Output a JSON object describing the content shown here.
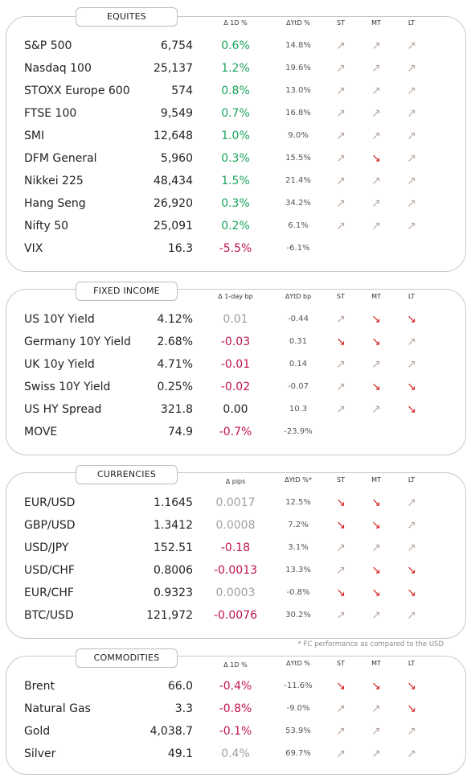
{
  "sections": [
    {
      "id": "equities",
      "title": "EQUITES",
      "headers": {
        "d1": "Δ 1D %",
        "ytd": "ΔYtD %",
        "st": "ST",
        "mt": "MT",
        "lt": "LT"
      },
      "rows": [
        {
          "name": "S&P 500",
          "value": "6,754",
          "d1": "0.6%",
          "d1_tone": "pos",
          "ytd": "14.8%",
          "st": "↗",
          "st_dir": "up",
          "mt": "↗",
          "mt_dir": "up",
          "lt": "↗",
          "lt_dir": "up"
        },
        {
          "name": "Nasdaq 100",
          "value": "25,137",
          "d1": "1.2%",
          "d1_tone": "pos",
          "ytd": "19.6%",
          "st": "↗",
          "st_dir": "up",
          "mt": "↗",
          "mt_dir": "up",
          "lt": "↗",
          "lt_dir": "up"
        },
        {
          "name": "STOXX Europe 600",
          "value": "574",
          "d1": "0.8%",
          "d1_tone": "pos",
          "ytd": "13.0%",
          "st": "↗",
          "st_dir": "up",
          "mt": "↗",
          "mt_dir": "up",
          "lt": "↗",
          "lt_dir": "up"
        },
        {
          "name": "FTSE 100",
          "value": "9,549",
          "d1": "0.7%",
          "d1_tone": "pos",
          "ytd": "16.8%",
          "st": "↗",
          "st_dir": "up",
          "mt": "↗",
          "mt_dir": "up",
          "lt": "↗",
          "lt_dir": "up"
        },
        {
          "name": "SMI",
          "value": "12,648",
          "d1": "1.0%",
          "d1_tone": "pos",
          "ytd": "9.0%",
          "st": "↗",
          "st_dir": "up",
          "mt": "↗",
          "mt_dir": "up",
          "lt": "↗",
          "lt_dir": "up"
        },
        {
          "name": "DFM General",
          "value": "5,960",
          "d1": "0.3%",
          "d1_tone": "pos",
          "ytd": "15.5%",
          "st": "↗",
          "st_dir": "up",
          "mt": "↘",
          "mt_dir": "down",
          "lt": "↗",
          "lt_dir": "up"
        },
        {
          "name": "Nikkei 225",
          "value": "48,434",
          "d1": "1.5%",
          "d1_tone": "pos",
          "ytd": "21.4%",
          "st": "↗",
          "st_dir": "up",
          "mt": "↗",
          "mt_dir": "up",
          "lt": "↗",
          "lt_dir": "up"
        },
        {
          "name": "Hang Seng",
          "value": "26,920",
          "d1": "0.3%",
          "d1_tone": "pos",
          "ytd": "34.2%",
          "st": "↗",
          "st_dir": "up",
          "mt": "↗",
          "mt_dir": "up",
          "lt": "↗",
          "lt_dir": "up"
        },
        {
          "name": "Nifty  50",
          "value": "25,091",
          "d1": "0.2%",
          "d1_tone": "pos",
          "ytd": "6.1%",
          "st": "↗",
          "st_dir": "up",
          "mt": "↗",
          "mt_dir": "up",
          "lt": "↗",
          "lt_dir": "up"
        },
        {
          "name": "VIX",
          "value": "16.3",
          "d1": "-5.5%",
          "d1_tone": "neg",
          "ytd": "-6.1%",
          "st": "",
          "st_dir": "",
          "mt": "",
          "mt_dir": "",
          "lt": "",
          "lt_dir": ""
        }
      ]
    },
    {
      "id": "fixed_income",
      "title": "FIXED INCOME",
      "headers": {
        "d1": "Δ 1-day bp",
        "ytd": "ΔYtD bp",
        "st": "ST",
        "mt": "MT",
        "lt": "LT"
      },
      "rows": [
        {
          "name": "US 10Y Yield",
          "value": "4.12%",
          "d1": "0.01",
          "d1_tone": "grey",
          "ytd": "-0.44",
          "st": "↗",
          "st_dir": "up",
          "mt": "↘",
          "mt_dir": "down",
          "lt": "↘",
          "lt_dir": "down"
        },
        {
          "name": "Germany 10Y Yield",
          "value": "2.68%",
          "d1": "-0.03",
          "d1_tone": "neg",
          "ytd": "0.31",
          "st": "↘",
          "st_dir": "down",
          "mt": "↘",
          "mt_dir": "down",
          "lt": "↗",
          "lt_dir": "up"
        },
        {
          "name": "UK 10y Yield",
          "value": "4.71%",
          "d1": "-0.01",
          "d1_tone": "neg",
          "ytd": "0.14",
          "st": "↗",
          "st_dir": "up",
          "mt": "↗",
          "mt_dir": "up",
          "lt": "↗",
          "lt_dir": "up"
        },
        {
          "name": "Swiss 10Y Yield",
          "value": "0.25%",
          "d1": "-0.02",
          "d1_tone": "neg",
          "ytd": "-0.07",
          "st": "↗",
          "st_dir": "up",
          "mt": "↘",
          "mt_dir": "down",
          "lt": "↘",
          "lt_dir": "down"
        },
        {
          "name": "US HY Spread",
          "value": "321.8",
          "d1": "0.00",
          "d1_tone": "neu",
          "ytd": "10.3",
          "st": "↗",
          "st_dir": "up",
          "mt": "↗",
          "mt_dir": "up",
          "lt": "↘",
          "lt_dir": "down"
        },
        {
          "name": "MOVE",
          "value": "74.9",
          "d1": "-0.7%",
          "d1_tone": "neg",
          "ytd": "-23.9%",
          "st": "",
          "st_dir": "",
          "mt": "",
          "mt_dir": "",
          "lt": "",
          "lt_dir": ""
        }
      ]
    },
    {
      "id": "currencies",
      "title": "CURRENCIES",
      "headers": {
        "d1": "Δ pips",
        "ytd": "ΔYtD %*",
        "st": "ST",
        "mt": "MT",
        "lt": "LT"
      },
      "rows": [
        {
          "name": "EUR/USD",
          "value": "1.1645",
          "d1": "0.0017",
          "d1_tone": "grey",
          "ytd": "12.5%",
          "st": "↘",
          "st_dir": "down",
          "mt": "↘",
          "mt_dir": "down",
          "lt": "↗",
          "lt_dir": "up"
        },
        {
          "name": "GBP/USD",
          "value": "1.3412",
          "d1": "0.0008",
          "d1_tone": "grey",
          "ytd": "7.2%",
          "st": "↘",
          "st_dir": "down",
          "mt": "↘",
          "mt_dir": "down",
          "lt": "↗",
          "lt_dir": "up"
        },
        {
          "name": "USD/JPY",
          "value": "152.51",
          "d1": "-0.18",
          "d1_tone": "neg",
          "ytd": "3.1%",
          "st": "↗",
          "st_dir": "up",
          "mt": "↗",
          "mt_dir": "up",
          "lt": "↗",
          "lt_dir": "up"
        },
        {
          "name": "USD/CHF",
          "value": "0.8006",
          "d1": "-0.0013",
          "d1_tone": "neg",
          "ytd": "13.3%",
          "st": "↗",
          "st_dir": "up",
          "mt": "↘",
          "mt_dir": "down",
          "lt": "↘",
          "lt_dir": "down"
        },
        {
          "name": "EUR/CHF",
          "value": "0.9323",
          "d1": "0.0003",
          "d1_tone": "grey",
          "ytd": "-0.8%",
          "st": "↘",
          "st_dir": "down",
          "mt": "↘",
          "mt_dir": "down",
          "lt": "↘",
          "lt_dir": "down"
        },
        {
          "name": "BTC/USD",
          "value": "121,972",
          "d1": "-0.0076",
          "d1_tone": "neg",
          "ytd": "30.2%",
          "st": "↗",
          "st_dir": "up",
          "mt": "↗",
          "mt_dir": "up",
          "lt": "↗",
          "lt_dir": "up"
        }
      ]
    },
    {
      "id": "commodities",
      "title": "COMMODITIES",
      "headers": {
        "d1": "Δ 1D %",
        "ytd": "ΔYtD %",
        "st": "ST",
        "mt": "MT",
        "lt": "LT"
      },
      "rows": [
        {
          "name": "Brent",
          "value": "66.0",
          "d1": "-0.4%",
          "d1_tone": "neg",
          "ytd": "-11.6%",
          "st": "↘",
          "st_dir": "down",
          "mt": "↘",
          "mt_dir": "down",
          "lt": "↘",
          "lt_dir": "down"
        },
        {
          "name": "Natural Gas",
          "value": "3.3",
          "d1": "-0.8%",
          "d1_tone": "neg",
          "ytd": "-9.0%",
          "st": "↗",
          "st_dir": "up",
          "mt": "↗",
          "mt_dir": "up",
          "lt": "↘",
          "lt_dir": "down"
        },
        {
          "name": "Gold",
          "value": "4,038.7",
          "d1": "-0.1%",
          "d1_tone": "neg",
          "ytd": "53.9%",
          "st": "↗",
          "st_dir": "up",
          "mt": "↗",
          "mt_dir": "up",
          "lt": "↗",
          "lt_dir": "up"
        },
        {
          "name": "Silver",
          "value": "49.1",
          "d1": "0.4%",
          "d1_tone": "grey",
          "ytd": "69.7%",
          "st": "↗",
          "st_dir": "up",
          "mt": "↗",
          "mt_dir": "up",
          "lt": "↗",
          "lt_dir": "up"
        }
      ]
    }
  ],
  "footnote": "* FC performance as compared to the USD",
  "colors": {
    "positive": "#1aa35a",
    "negative": "#c0154a",
    "neutral_grey": "#a0a0a0",
    "arrow_up": "#b8a8a0",
    "arrow_down": "#d21f1f"
  }
}
